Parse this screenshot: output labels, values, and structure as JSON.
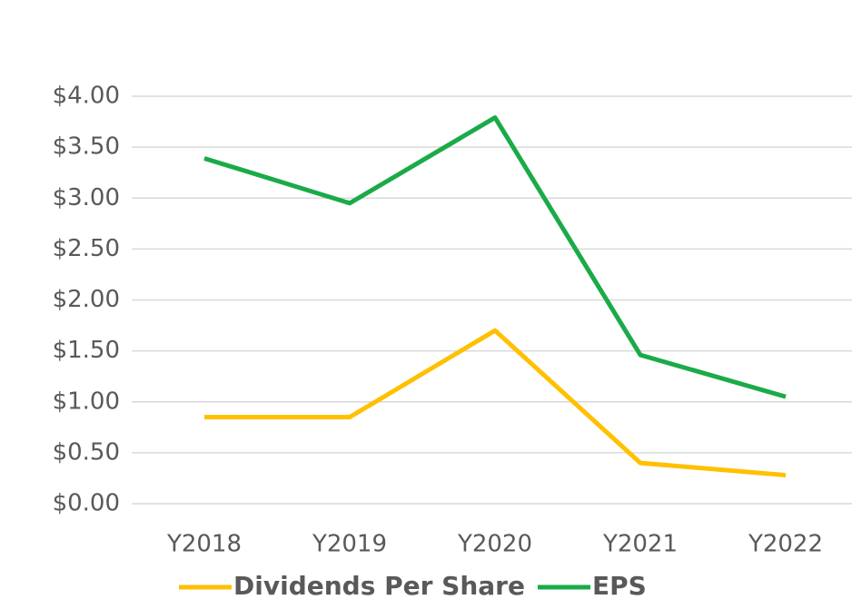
{
  "chart_data": {
    "type": "line",
    "categories": [
      "Y2018",
      "Y2019",
      "Y2020",
      "Y2021",
      "Y2022"
    ],
    "series": [
      {
        "name": "Dividends Per Share",
        "color": "#ffc000",
        "values": [
          0.85,
          0.85,
          1.7,
          0.4,
          0.28
        ]
      },
      {
        "name": "EPS",
        "color": "#1aab48",
        "values": [
          3.39,
          2.95,
          3.79,
          1.46,
          1.05
        ]
      }
    ],
    "ylim": [
      0,
      4
    ],
    "yticks": [
      {
        "value": 0,
        "label": "$0.00"
      },
      {
        "value": 0.5,
        "label": "$0.50"
      },
      {
        "value": 1,
        "label": "$1.00"
      },
      {
        "value": 1.5,
        "label": "$1.50"
      },
      {
        "value": 2,
        "label": "$2.00"
      },
      {
        "value": 2.5,
        "label": "$2.50"
      },
      {
        "value": 3,
        "label": "$3.00"
      },
      {
        "value": 3.5,
        "label": "$3.50"
      },
      {
        "value": 4,
        "label": "$4.00"
      }
    ],
    "grid": true,
    "legend": "bottom"
  }
}
